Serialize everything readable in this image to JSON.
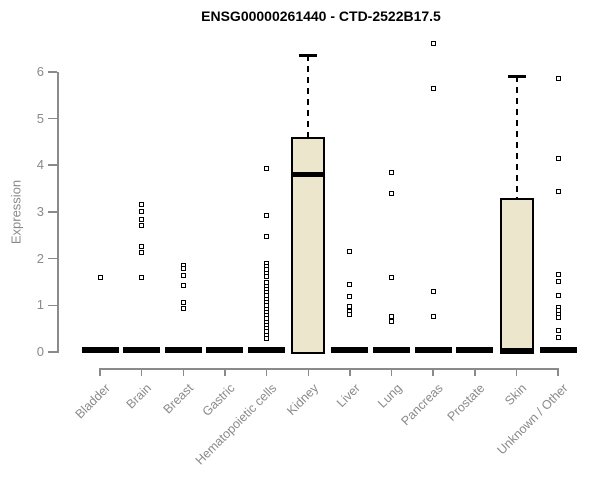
{
  "chart_data": {
    "type": "box",
    "title": "ENSG00000261440 - CTD-2522B17.5",
    "ylabel": "Expression",
    "xlabel": "",
    "ylim": [
      0,
      6.6
    ],
    "yticks": [
      0,
      1,
      2,
      3,
      4,
      5,
      6
    ],
    "grid": false,
    "legend": false,
    "box_color_hex": "#ece7cc",
    "boxes": [
      {
        "category": "Bladder",
        "low": 0,
        "q1": 0,
        "median": 0,
        "q3": 0,
        "high": 0,
        "outliers": [
          1.6
        ]
      },
      {
        "category": "Brain",
        "low": 0,
        "q1": 0,
        "median": 0,
        "q3": 0,
        "high": 0,
        "outliers": [
          3.15,
          3.0,
          2.83,
          2.7,
          2.25,
          2.12,
          1.6
        ]
      },
      {
        "category": "Breast",
        "low": 0,
        "q1": 0,
        "median": 0,
        "q3": 0,
        "high": 0,
        "outliers": [
          1.85,
          1.78,
          1.63,
          1.43,
          1.05,
          0.93
        ]
      },
      {
        "category": "Gastric",
        "low": 0,
        "q1": 0,
        "median": 0,
        "q3": 0,
        "high": 0,
        "outliers": []
      },
      {
        "category": "Hematopoietic cells",
        "low": 0,
        "q1": 0,
        "median": 0,
        "q3": 0,
        "high": 0,
        "outliers": [
          3.94,
          2.92,
          2.48,
          1.9,
          1.83,
          1.76,
          1.69,
          1.62,
          1.48,
          1.41,
          1.34,
          1.27,
          1.2,
          1.13,
          1.06,
          0.99,
          0.92,
          0.85,
          0.78,
          0.71,
          0.64,
          0.57,
          0.5,
          0.43,
          0.36,
          0.29
        ]
      },
      {
        "category": "Kidney",
        "low": 0,
        "q1": 0,
        "median": 3.8,
        "q3": 4.6,
        "high": 6.35,
        "outliers": []
      },
      {
        "category": "Liver",
        "low": 0,
        "q1": 0,
        "median": 0,
        "q3": 0,
        "high": 0,
        "outliers": [
          2.15,
          1.45,
          1.18,
          0.97,
          0.87,
          0.8
        ]
      },
      {
        "category": "Lung",
        "low": 0,
        "q1": 0,
        "median": 0,
        "q3": 0,
        "high": 0,
        "outliers": [
          3.85,
          3.4,
          1.6,
          0.75,
          0.65
        ]
      },
      {
        "category": "Pancreas",
        "low": 0,
        "q1": 0,
        "median": 0,
        "q3": 0,
        "high": 0,
        "outliers": [
          6.6,
          5.65,
          1.3,
          0.75
        ]
      },
      {
        "category": "Prostate",
        "low": 0,
        "q1": 0,
        "median": 0,
        "q3": 0,
        "high": 0,
        "outliers": []
      },
      {
        "category": "Skin",
        "low": 0,
        "q1": 0,
        "median": 0,
        "q3": 3.3,
        "high": 5.9,
        "outliers": []
      },
      {
        "category": "Unknown / Other",
        "low": 0,
        "q1": 0,
        "median": 0,
        "q3": 0,
        "high": 0,
        "outliers": [
          5.85,
          4.15,
          3.43,
          1.65,
          1.5,
          1.22,
          0.95,
          0.88,
          0.8,
          0.73,
          0.45,
          0.3
        ]
      }
    ]
  },
  "colors": {
    "box_fill": "#ece7cc",
    "box_border": "#000000",
    "median": "#000000",
    "whisker": "#000000",
    "outlier": "#000000",
    "axis": "#8a8a8a",
    "tick_label": "#8a8a8a",
    "title": "#000000",
    "background": "#ffffff"
  }
}
